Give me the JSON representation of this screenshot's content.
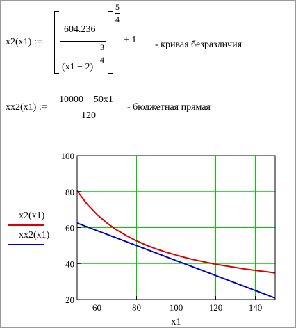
{
  "formula1": {
    "lhs": "x2(x1) :=",
    "numerator": "604.236",
    "denominator_base": "(x1 − 2)",
    "inner_exp_num": "3",
    "inner_exp_den": "4",
    "outer_exp_num": "5",
    "outer_exp_den": "4",
    "plus": "+ 1",
    "comment": "- кривая безразличия"
  },
  "formula2": {
    "lhs": "xx2(x1) :=",
    "numerator": "10000 − 50x1",
    "denominator": "120",
    "comment": "- бюджетная прямая"
  },
  "colors": {
    "grid": "#00cc00",
    "curve": "#dd0000",
    "line": "#0000cc",
    "axis": "#000000"
  },
  "chart_data": {
    "type": "line",
    "title": "",
    "xlabel": "x1",
    "ylabel": "",
    "xlim": [
      50,
      150
    ],
    "ylim": [
      20,
      100
    ],
    "xticks": [
      60,
      80,
      100,
      120,
      140
    ],
    "yticks": [
      20,
      40,
      60,
      80,
      100
    ],
    "grid": true,
    "legend_position": "left",
    "series": [
      {
        "name": "x2(x1)",
        "color": "#dd0000",
        "x": [
          50,
          55,
          60,
          65,
          70,
          75,
          80,
          85,
          90,
          95,
          100,
          105,
          110,
          115,
          120,
          125,
          130,
          135,
          140,
          145,
          150
        ],
        "y": [
          80.4,
          73.1,
          67.3,
          62.6,
          58.7,
          55.4,
          52.6,
          50.2,
          48.1,
          46.3,
          44.7,
          43.2,
          41.9,
          40.7,
          39.6,
          38.7,
          37.8,
          36.9,
          36.2,
          35.5,
          34.8
        ]
      },
      {
        "name": "xx2(x1)",
        "color": "#0000cc",
        "x": [
          50,
          150
        ],
        "y": [
          62.5,
          20.8
        ]
      }
    ]
  }
}
